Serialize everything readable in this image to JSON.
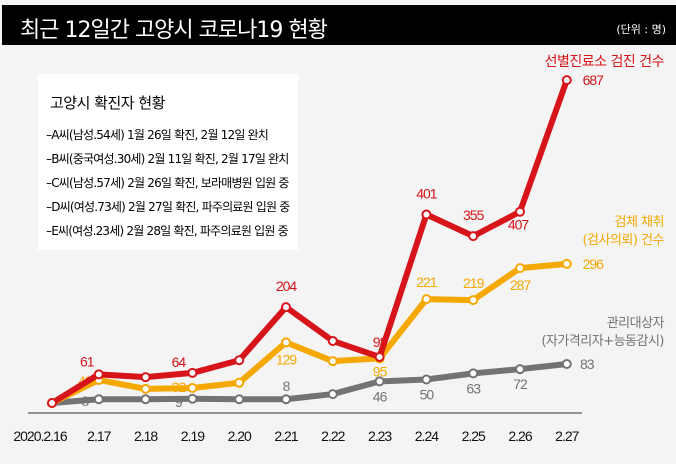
{
  "header": {
    "title": "최근 12일간 고양시 코로나19 현황",
    "unit": "(단위 : 명)"
  },
  "cases_box": {
    "title": "고양시 확진자 현황",
    "items": [
      "–A씨(남성.54세) 1월 26일 확진, 2월 12일 완치",
      "–B씨(중국여성.30세) 2월 11일 확진, 2월 17일 완치",
      "–C씨(남성.57세) 2월 26일 확진, 보라매병원 입원 중",
      "–D씨(여성.73세) 2월 27일 확진, 파주의료원 입원 중",
      "–E씨(여성.23세) 2월 28일 확진, 파주의료원 입원 중"
    ]
  },
  "chart_data": {
    "type": "line",
    "title": "최근 12일간 고양시 코로나19 현황",
    "xlabel": "",
    "ylabel": "명",
    "ylim": [
      0,
      700
    ],
    "grid": false,
    "categories": [
      "2020.2.16",
      "2.17",
      "2.18",
      "2.19",
      "2.20",
      "2.21",
      "2.22",
      "2.23",
      "2.24",
      "2.25",
      "2.26",
      "2.27"
    ],
    "series": [
      {
        "name": "선별진료소 검진 건수",
        "name_lines": [
          "선별진료소 검진 건수"
        ],
        "color": "#d7141a",
        "values": [
          0,
          61,
          55,
          64,
          91,
          204,
          132,
          98,
          401,
          355,
          407,
          687
        ],
        "labeled": [
          false,
          true,
          false,
          true,
          false,
          true,
          false,
          true,
          true,
          true,
          true,
          true
        ],
        "value_labels": [
          "",
          "61",
          "",
          "64",
          "",
          "204",
          "",
          "98",
          "401",
          "355",
          "407",
          "687"
        ]
      },
      {
        "name": "검체 채취 (검사의뢰) 건수",
        "name_lines": [
          "검체 채취",
          "(검사의뢰) 건수"
        ],
        "color": "#f5a800",
        "values": [
          0,
          49,
          30,
          32,
          43,
          129,
          89,
          95,
          221,
          219,
          287,
          296
        ],
        "labeled": [
          false,
          true,
          false,
          true,
          false,
          true,
          false,
          true,
          true,
          true,
          true,
          true
        ],
        "value_labels": [
          "",
          "49",
          "",
          "32",
          "",
          "129",
          "",
          "95",
          "221",
          "219",
          "287",
          "296"
        ]
      },
      {
        "name": "관리대상자 (자가격리자+능동감시)",
        "name_lines": [
          "관리대상자",
          "(자가격리자+능동감시)"
        ],
        "color": "#737373",
        "values": [
          0,
          8,
          8,
          9,
          8,
          8,
          19,
          46,
          50,
          63,
          72,
          83
        ],
        "labeled": [
          false,
          true,
          false,
          true,
          false,
          true,
          false,
          true,
          true,
          true,
          true,
          true
        ],
        "value_labels": [
          "",
          "8",
          "",
          "9",
          "",
          "8",
          "",
          "46",
          "50",
          "63",
          "72",
          "83"
        ]
      }
    ]
  }
}
